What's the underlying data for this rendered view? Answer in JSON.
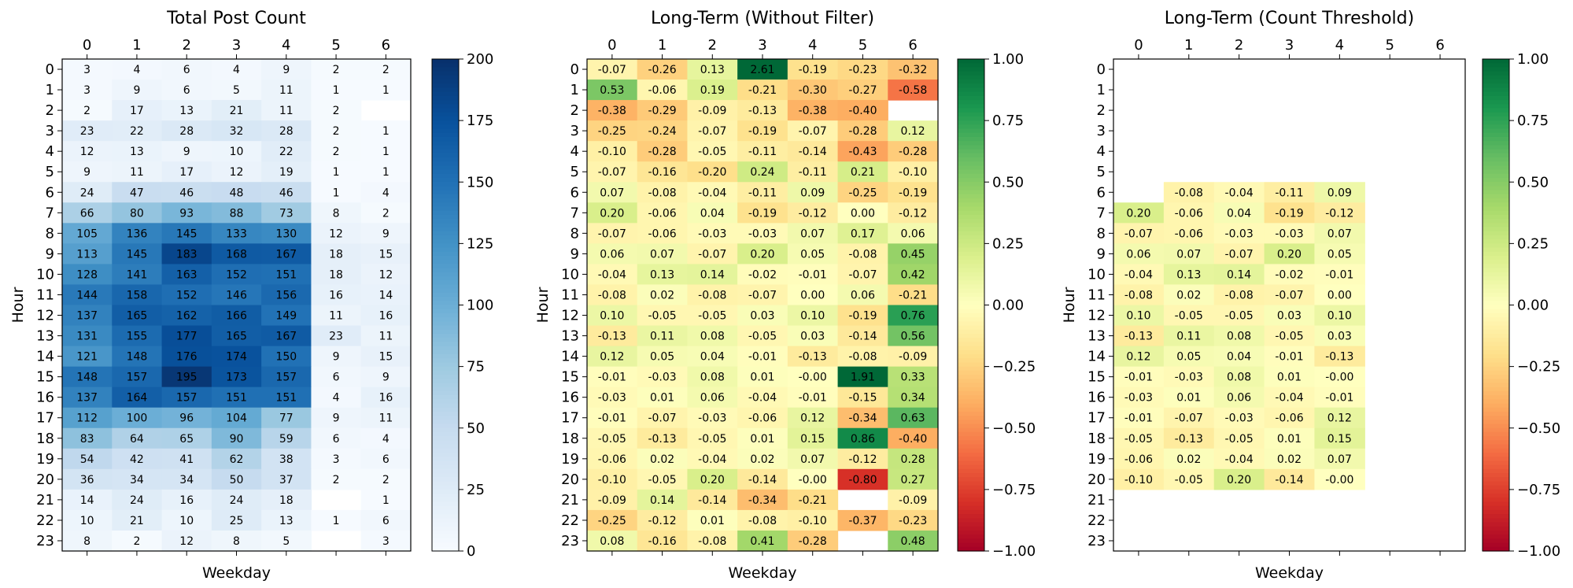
{
  "chart_data": [
    {
      "type": "heatmap",
      "title": "Total Post Count",
      "xlabel": "Weekday",
      "ylabel": "Hour",
      "x": [
        "0",
        "1",
        "2",
        "3",
        "4",
        "5",
        "6"
      ],
      "y": [
        "0",
        "1",
        "2",
        "3",
        "4",
        "5",
        "6",
        "7",
        "8",
        "9",
        "10",
        "11",
        "12",
        "13",
        "14",
        "15",
        "16",
        "17",
        "18",
        "19",
        "20",
        "21",
        "22",
        "23"
      ],
      "colormap": "Blues",
      "vmin": 0,
      "vmax": 200,
      "colorbar_ticks": [
        "0",
        "25",
        "50",
        "75",
        "100",
        "125",
        "150",
        "175",
        "200"
      ],
      "values": [
        [
          3,
          4,
          6,
          4,
          9,
          2,
          2
        ],
        [
          3,
          9,
          6,
          5,
          11,
          1,
          1
        ],
        [
          2,
          17,
          13,
          21,
          11,
          2,
          null
        ],
        [
          23,
          22,
          28,
          32,
          28,
          2,
          1
        ],
        [
          12,
          13,
          9,
          10,
          22,
          2,
          1
        ],
        [
          9,
          11,
          17,
          12,
          19,
          1,
          1
        ],
        [
          24,
          47,
          46,
          48,
          46,
          1,
          4
        ],
        [
          66,
          80,
          93,
          88,
          73,
          8,
          2
        ],
        [
          105,
          136,
          145,
          133,
          130,
          12,
          9
        ],
        [
          113,
          145,
          183,
          168,
          167,
          18,
          15
        ],
        [
          128,
          141,
          163,
          152,
          151,
          18,
          12
        ],
        [
          144,
          158,
          152,
          146,
          156,
          16,
          14
        ],
        [
          137,
          165,
          162,
          166,
          149,
          11,
          16
        ],
        [
          131,
          155,
          177,
          165,
          167,
          23,
          11
        ],
        [
          121,
          148,
          176,
          174,
          150,
          9,
          15
        ],
        [
          148,
          157,
          195,
          173,
          157,
          6,
          9
        ],
        [
          137,
          164,
          157,
          151,
          151,
          4,
          16
        ],
        [
          112,
          100,
          96,
          104,
          77,
          9,
          11
        ],
        [
          83,
          64,
          65,
          90,
          59,
          6,
          4
        ],
        [
          54,
          42,
          41,
          62,
          38,
          3,
          6
        ],
        [
          36,
          34,
          34,
          50,
          37,
          2,
          2
        ],
        [
          14,
          24,
          16,
          24,
          18,
          null,
          1
        ],
        [
          10,
          21,
          10,
          25,
          13,
          1,
          6
        ],
        [
          8,
          2,
          12,
          8,
          5,
          null,
          3
        ]
      ]
    },
    {
      "type": "heatmap",
      "title": "Long-Term (Without Filter)",
      "xlabel": "Weekday",
      "ylabel": "Hour",
      "x": [
        "0",
        "1",
        "2",
        "3",
        "4",
        "5",
        "6"
      ],
      "y": [
        "0",
        "1",
        "2",
        "3",
        "4",
        "5",
        "6",
        "7",
        "8",
        "9",
        "10",
        "11",
        "12",
        "13",
        "14",
        "15",
        "16",
        "17",
        "18",
        "19",
        "20",
        "21",
        "22",
        "23"
      ],
      "colormap": "RdYlGn",
      "vmin": -1,
      "vmax": 1,
      "colorbar_ticks": [
        "1.00",
        "0.75",
        "0.50",
        "0.25",
        "0.00",
        "−0.25",
        "−0.50",
        "−0.75",
        "−1.00"
      ],
      "values": [
        [
          -0.07,
          -0.26,
          0.13,
          2.61,
          -0.19,
          -0.23,
          -0.32
        ],
        [
          0.53,
          -0.06,
          0.19,
          -0.21,
          -0.3,
          -0.27,
          -0.58
        ],
        [
          -0.38,
          -0.29,
          -0.09,
          -0.13,
          -0.38,
          -0.4,
          null
        ],
        [
          -0.25,
          -0.24,
          -0.07,
          -0.19,
          -0.07,
          -0.28,
          0.12
        ],
        [
          -0.1,
          -0.28,
          -0.05,
          -0.11,
          -0.14,
          -0.43,
          -0.28
        ],
        [
          -0.07,
          -0.16,
          -0.2,
          0.24,
          -0.11,
          0.21,
          -0.1
        ],
        [
          0.07,
          -0.08,
          -0.04,
          -0.11,
          0.09,
          -0.25,
          -0.19
        ],
        [
          0.2,
          -0.06,
          0.04,
          -0.19,
          -0.12,
          0.0,
          -0.12
        ],
        [
          -0.07,
          -0.06,
          -0.03,
          -0.03,
          0.07,
          0.17,
          0.06
        ],
        [
          0.06,
          0.07,
          -0.07,
          0.2,
          0.05,
          -0.08,
          0.45
        ],
        [
          -0.04,
          0.13,
          0.14,
          -0.02,
          -0.01,
          -0.07,
          0.42
        ],
        [
          -0.08,
          0.02,
          -0.08,
          -0.07,
          0.0,
          0.06,
          -0.21
        ],
        [
          0.1,
          -0.05,
          -0.05,
          0.03,
          0.1,
          -0.19,
          0.76
        ],
        [
          -0.13,
          0.11,
          0.08,
          -0.05,
          0.03,
          -0.14,
          0.56
        ],
        [
          0.12,
          0.05,
          0.04,
          -0.01,
          -0.13,
          -0.08,
          -0.09
        ],
        [
          -0.01,
          -0.03,
          0.08,
          0.01,
          -0.0,
          1.91,
          0.33
        ],
        [
          -0.03,
          0.01,
          0.06,
          -0.04,
          -0.01,
          -0.15,
          0.34
        ],
        [
          -0.01,
          -0.07,
          -0.03,
          -0.06,
          0.12,
          -0.34,
          0.63
        ],
        [
          -0.05,
          -0.13,
          -0.05,
          0.01,
          0.15,
          0.86,
          -0.4
        ],
        [
          -0.06,
          0.02,
          -0.04,
          0.02,
          0.07,
          -0.12,
          0.28
        ],
        [
          -0.1,
          -0.05,
          0.2,
          -0.14,
          -0.0,
          -0.8,
          0.27
        ],
        [
          -0.09,
          0.14,
          -0.14,
          -0.34,
          -0.21,
          null,
          -0.09
        ],
        [
          -0.25,
          -0.12,
          0.01,
          -0.08,
          -0.1,
          -0.37,
          -0.23
        ],
        [
          0.08,
          -0.16,
          -0.08,
          0.41,
          -0.28,
          null,
          0.48
        ]
      ]
    },
    {
      "type": "heatmap",
      "title": "Long-Term (Count Threshold)",
      "xlabel": "Weekday",
      "ylabel": "Hour",
      "x": [
        "0",
        "1",
        "2",
        "3",
        "4",
        "5",
        "6"
      ],
      "y": [
        "0",
        "1",
        "2",
        "3",
        "4",
        "5",
        "6",
        "7",
        "8",
        "9",
        "10",
        "11",
        "12",
        "13",
        "14",
        "15",
        "16",
        "17",
        "18",
        "19",
        "20",
        "21",
        "22",
        "23"
      ],
      "colormap": "RdYlGn",
      "vmin": -1,
      "vmax": 1,
      "colorbar_ticks": [
        "1.00",
        "0.75",
        "0.50",
        "0.25",
        "0.00",
        "−0.25",
        "−0.50",
        "−0.75",
        "−1.00"
      ],
      "values": [
        [
          null,
          null,
          null,
          null,
          null,
          null,
          null
        ],
        [
          null,
          null,
          null,
          null,
          null,
          null,
          null
        ],
        [
          null,
          null,
          null,
          null,
          null,
          null,
          null
        ],
        [
          null,
          null,
          null,
          null,
          null,
          null,
          null
        ],
        [
          null,
          null,
          null,
          null,
          null,
          null,
          null
        ],
        [
          null,
          null,
          null,
          null,
          null,
          null,
          null
        ],
        [
          null,
          -0.08,
          -0.04,
          -0.11,
          0.09,
          null,
          null
        ],
        [
          0.2,
          -0.06,
          0.04,
          -0.19,
          -0.12,
          null,
          null
        ],
        [
          -0.07,
          -0.06,
          -0.03,
          -0.03,
          0.07,
          null,
          null
        ],
        [
          0.06,
          0.07,
          -0.07,
          0.2,
          0.05,
          null,
          null
        ],
        [
          -0.04,
          0.13,
          0.14,
          -0.02,
          -0.01,
          null,
          null
        ],
        [
          -0.08,
          0.02,
          -0.08,
          -0.07,
          0.0,
          null,
          null
        ],
        [
          0.1,
          -0.05,
          -0.05,
          0.03,
          0.1,
          null,
          null
        ],
        [
          -0.13,
          0.11,
          0.08,
          -0.05,
          0.03,
          null,
          null
        ],
        [
          0.12,
          0.05,
          0.04,
          -0.01,
          -0.13,
          null,
          null
        ],
        [
          -0.01,
          -0.03,
          0.08,
          0.01,
          -0.0,
          null,
          null
        ],
        [
          -0.03,
          0.01,
          0.06,
          -0.04,
          -0.01,
          null,
          null
        ],
        [
          -0.01,
          -0.07,
          -0.03,
          -0.06,
          0.12,
          null,
          null
        ],
        [
          -0.05,
          -0.13,
          -0.05,
          0.01,
          0.15,
          null,
          null
        ],
        [
          -0.06,
          0.02,
          -0.04,
          0.02,
          0.07,
          null,
          null
        ],
        [
          -0.1,
          -0.05,
          0.2,
          -0.14,
          -0.0,
          null,
          null
        ],
        [
          null,
          null,
          null,
          null,
          null,
          null,
          null
        ],
        [
          null,
          null,
          null,
          null,
          null,
          null,
          null
        ],
        [
          null,
          null,
          null,
          null,
          null,
          null,
          null
        ]
      ]
    }
  ]
}
